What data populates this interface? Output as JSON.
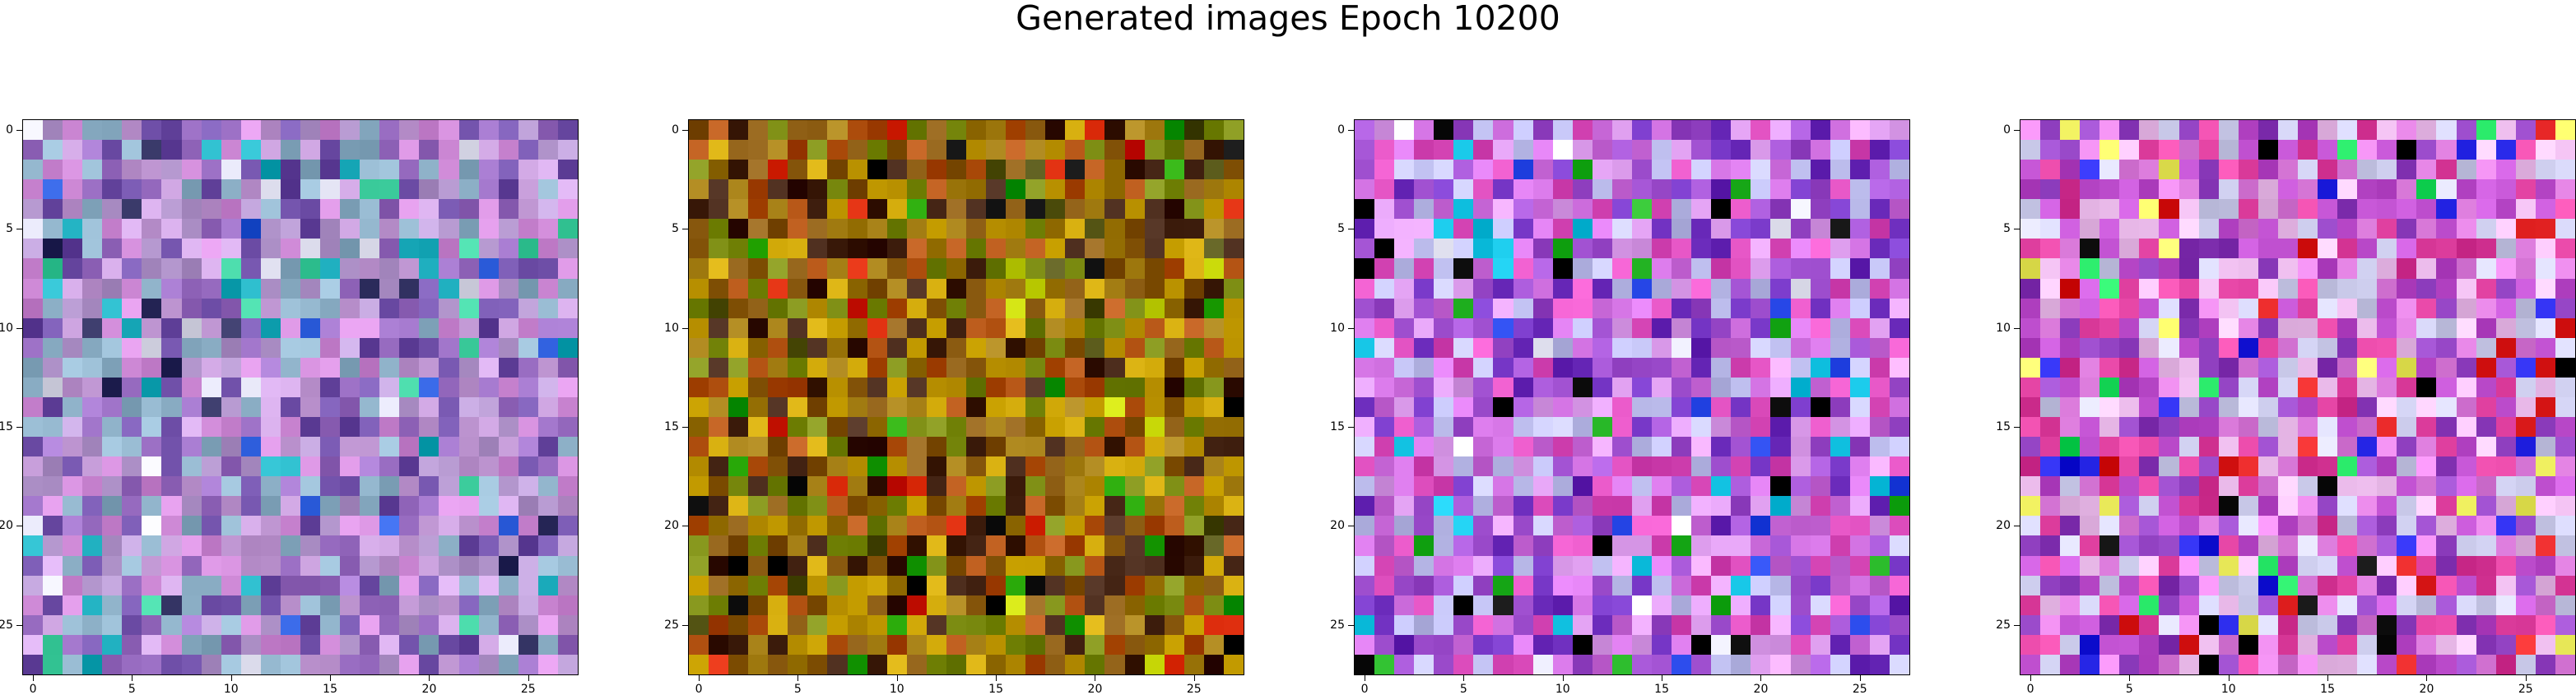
{
  "figure": {
    "title": "Generated images Epoch 10200"
  },
  "panels": [
    {
      "id": 1,
      "palette": "lavender-mauve",
      "description_colors": [
        "#b79ad1",
        "#9b6fc4",
        "#c9a0dc",
        "#8fb2c9",
        "#d08bd8",
        "#6f4fa8"
      ]
    },
    {
      "id": 2,
      "palette": "ochre-olive",
      "description_colors": [
        "#c8a000",
        "#a07a10",
        "#8a5a10",
        "#b05010",
        "#7a8a10",
        "#402010"
      ]
    },
    {
      "id": 3,
      "palette": "magenta-violet",
      "description_colors": [
        "#d070e0",
        "#a050d0",
        "#e0a0f0",
        "#7030c0",
        "#e050c0",
        "#c0c0f0"
      ]
    },
    {
      "id": 4,
      "palette": "pink-multicolor",
      "description_colors": [
        "#e080e0",
        "#c050d0",
        "#f0c0f0",
        "#9040c0",
        "#e040a0",
        "#d0d0f0"
      ]
    }
  ],
  "axes": {
    "x_ticks": [
      "0",
      "5",
      "10",
      "15",
      "20",
      "25"
    ],
    "y_ticks": [
      "0",
      "5",
      "10",
      "15",
      "20",
      "25"
    ],
    "x_tick_values": [
      0,
      5,
      10,
      15,
      20,
      25
    ],
    "y_tick_values": [
      0,
      5,
      10,
      15,
      20,
      25
    ],
    "grid_size": 28
  }
}
